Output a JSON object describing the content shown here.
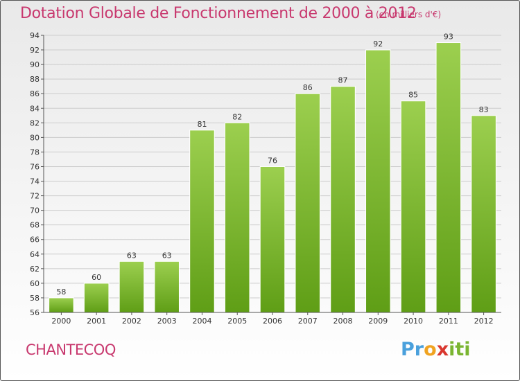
{
  "header": {
    "title": "Dotation Globale de Fonctionnement de 2000 à 2012",
    "subtitle": "(en milliers d'€)"
  },
  "commune": "CHANTECOQ",
  "logo": {
    "letters": [
      "P",
      "r",
      "o",
      "x",
      "i",
      "t",
      "i"
    ],
    "colors": [
      "#4aa0dc",
      "#4aa0dc",
      "#f0a320",
      "#d9372f",
      "#7ab531",
      "#7ab531",
      "#7ab531"
    ]
  },
  "colors": {
    "title": "#c8386e",
    "bar_light": "#9ccf4f",
    "bar_dark": "#5f9e16",
    "grid": "#cccccc"
  },
  "chart_data": {
    "type": "bar",
    "categories": [
      "2000",
      "2001",
      "2002",
      "2003",
      "2004",
      "2005",
      "2006",
      "2007",
      "2008",
      "2009",
      "2010",
      "2011",
      "2012"
    ],
    "values": [
      58,
      60,
      63,
      63,
      81,
      82,
      76,
      86,
      87,
      92,
      85,
      93,
      83
    ],
    "title": "Dotation Globale de Fonctionnement de 2000 à 2012",
    "subtitle": "(en milliers d'€)",
    "xlabel": "",
    "ylabel": "",
    "ylim": [
      56,
      94
    ],
    "yticks": [
      56,
      58,
      60,
      62,
      64,
      66,
      68,
      70,
      72,
      74,
      76,
      78,
      80,
      82,
      84,
      86,
      88,
      90,
      92,
      94
    ],
    "grid": true,
    "data_labels": true
  }
}
